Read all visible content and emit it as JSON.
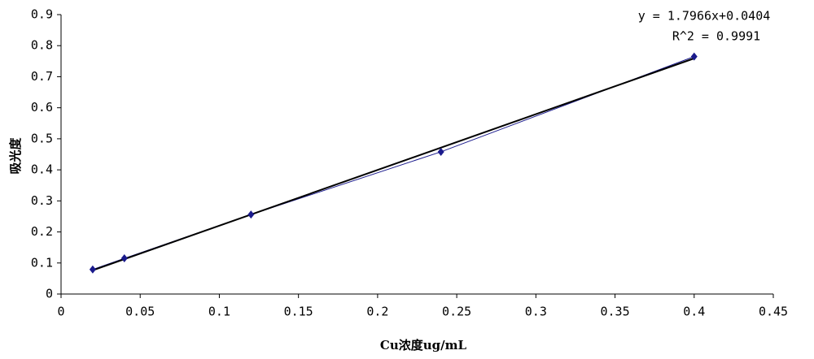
{
  "chart_data": {
    "type": "scatter",
    "x_label": "Cu浓度ug/mL",
    "y_label": "吸光度",
    "series": [
      {
        "color": "#1a1a8c",
        "x": [
          0.02,
          0.04,
          0.12,
          0.24,
          0.4
        ],
        "values": [
          0.079,
          0.115,
          0.256,
          0.458,
          0.765
        ]
      }
    ],
    "trendline": {
      "slope": 1.7966,
      "intercept": 0.0404,
      "color": "#000000",
      "equation": "y = 1.7966x+0.0404",
      "r2_label": "R^2 = 0.9991"
    },
    "xlim": [
      0,
      0.45
    ],
    "xticks": [
      0,
      0.05,
      0.1,
      0.15,
      0.2,
      0.25,
      0.3,
      0.35,
      0.4,
      0.45
    ],
    "ylim": [
      0,
      0.9
    ],
    "yticks": [
      0,
      0.1,
      0.2,
      0.3,
      0.4,
      0.5,
      0.6,
      0.7,
      0.8,
      0.9
    ],
    "grid": false
  }
}
